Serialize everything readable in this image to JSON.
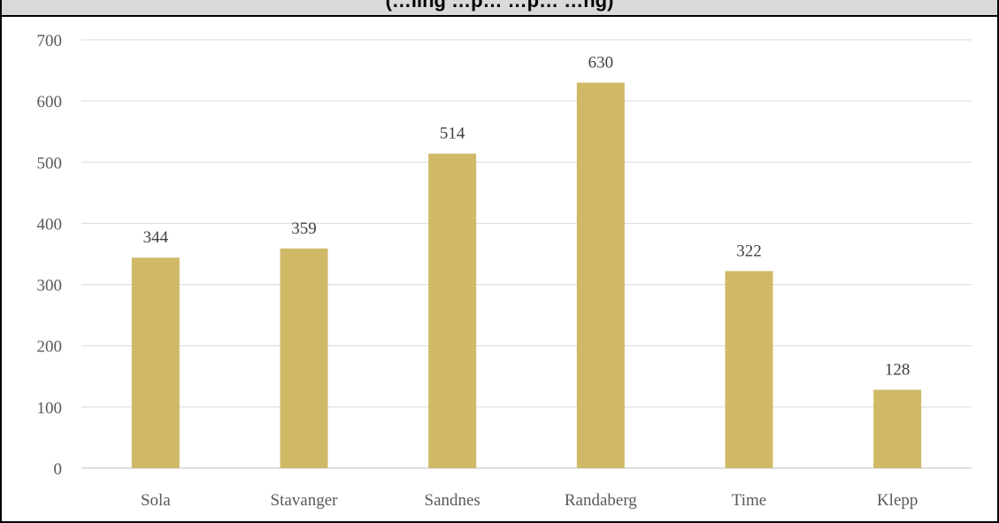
{
  "chart_data": {
    "type": "bar",
    "title": "(…ling …p… …p… …ng)",
    "categories": [
      "Sola",
      "Stavanger",
      "Sandnes",
      "Randaberg",
      "Time",
      "Klepp"
    ],
    "values": [
      344,
      359,
      514,
      630,
      322,
      128
    ],
    "data_labels": [
      "344",
      "359",
      "514",
      "630",
      "322",
      "128"
    ],
    "y_ticks": [
      "0",
      "100",
      "200",
      "300",
      "400",
      "500",
      "600",
      "700"
    ],
    "ylim": [
      0,
      700
    ],
    "grid": true,
    "legend": "none",
    "bar_color": "#cfb967",
    "gridline_color": "#d9d9d9"
  }
}
